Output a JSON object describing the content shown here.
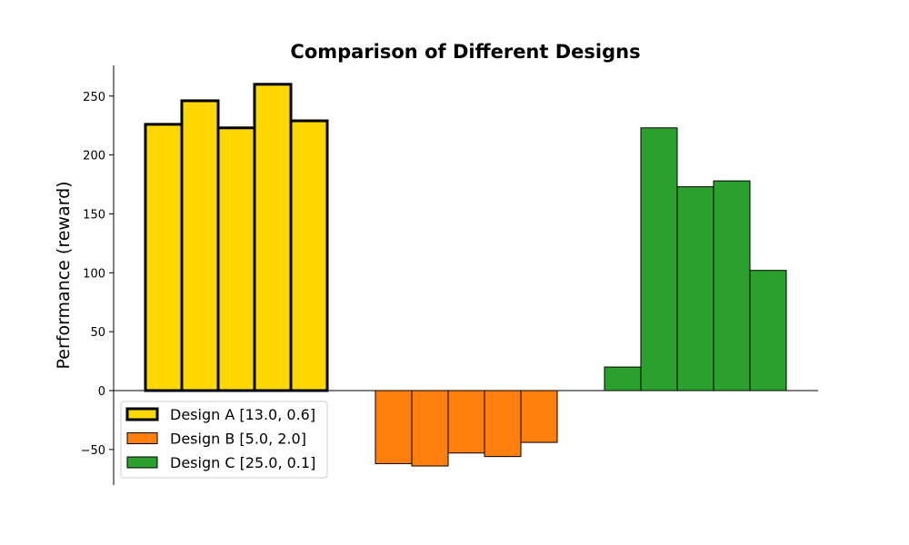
{
  "chart_data": {
    "type": "bar",
    "title": "Comparison of Different Designs",
    "xlabel": "",
    "ylabel": "Performance (reward)",
    "ylim": [
      -80,
      276
    ],
    "yticks": [
      250,
      200,
      150,
      100,
      50,
      0,
      -50
    ],
    "ytick_labels": [
      "250",
      "200",
      "150",
      "100",
      "50",
      "0",
      "−50"
    ],
    "grid": false,
    "legend_position": "lower-left",
    "series": [
      {
        "name": "Design A [13.0, 0.6]",
        "color": "#FFD700",
        "highlighted": true,
        "values": [
          226,
          246,
          223,
          260,
          229
        ]
      },
      {
        "name": "Design B [5.0, 2.0]",
        "color": "#FF7F0E",
        "highlighted": false,
        "values": [
          -62,
          -64,
          -53,
          -56,
          -44
        ]
      },
      {
        "name": "Design C [25.0, 0.1]",
        "color": "#2CA02C",
        "highlighted": false,
        "values": [
          20,
          223,
          173,
          178,
          102
        ]
      }
    ]
  }
}
